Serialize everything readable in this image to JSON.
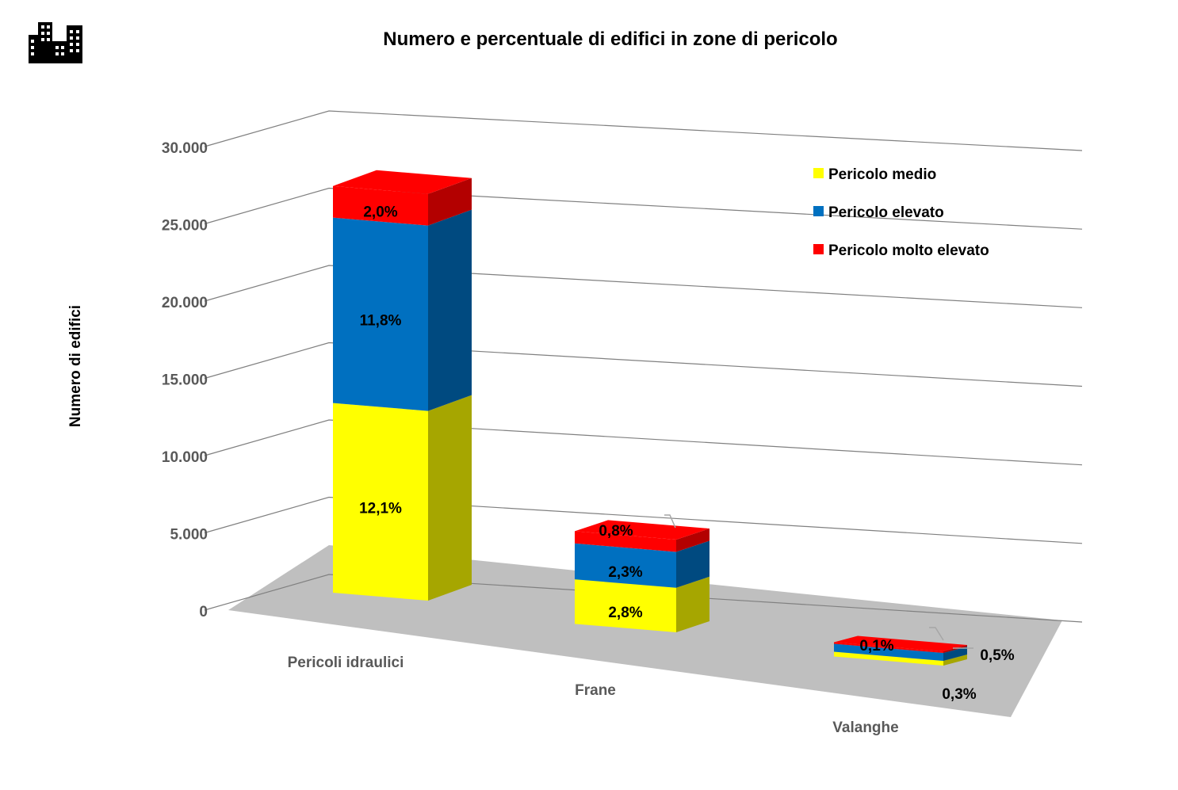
{
  "chart_data": {
    "type": "bar",
    "stacked": true,
    "three_d": true,
    "title": "Numero e percentuale di edifici in zone di pericolo",
    "ylabel": "Numero di edifici",
    "xlabel": "",
    "ylim": [
      0,
      30000
    ],
    "yticks": [
      "0",
      "5.000",
      "10.000",
      "15.000",
      "20.000",
      "25.000",
      "30.000"
    ],
    "ytick_values": [
      0,
      5000,
      10000,
      15000,
      20000,
      25000,
      30000
    ],
    "grid": true,
    "legend_position": "top-right",
    "categories": [
      "Pericoli idraulici",
      "Frane",
      "Valanghe"
    ],
    "series": [
      {
        "name": "Pericolo medio",
        "color": "#ffff00",
        "side_color": "#a6a600",
        "values": [
          13200,
          3100,
          330
        ],
        "labels": [
          "12,1%",
          "2,8%",
          "0,3%"
        ]
      },
      {
        "name": "Pericolo elevato",
        "color": "#0070c0",
        "side_color": "#004a80",
        "values": [
          12900,
          2500,
          550
        ],
        "labels": [
          "11,8%",
          "2,3%",
          "0,5%"
        ]
      },
      {
        "name": "Pericolo molto elevato",
        "color": "#ff0000",
        "side_color": "#b30000",
        "values": [
          2200,
          850,
          110
        ],
        "labels": [
          "2,0%",
          "0,8%",
          "0,1%"
        ]
      }
    ]
  },
  "icon": "buildings-icon"
}
